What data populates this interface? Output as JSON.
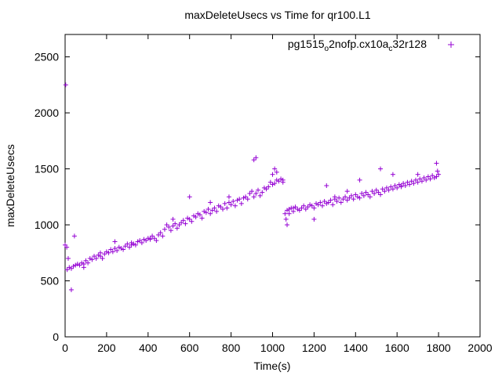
{
  "chart_data": {
    "type": "scatter",
    "title": "maxDeleteUsecs vs Time for qr100.L1",
    "xlabel": "Time(s)",
    "ylabel": "maxDeleteUsecs",
    "xlim": [
      0,
      2000
    ],
    "ylim": [
      0,
      2700
    ],
    "xticks": [
      "0",
      "200",
      "400",
      "600",
      "800",
      "1000",
      "1200",
      "1400",
      "1600",
      "1800",
      "2000"
    ],
    "yticks": [
      "0",
      "500",
      "1000",
      "1500",
      "2000",
      "2500"
    ],
    "grid": false,
    "legend": {
      "position": "top-right",
      "entries": [
        {
          "prefix": "pg1515",
          "sub1": "o",
          "middle": "2nofp.cx10a",
          "sub2": "c",
          "suffix": "32r128"
        }
      ]
    },
    "series": [
      {
        "name": "pg1515_o2nofp.cx10a_c32r128",
        "color": "#9400D3",
        "marker": "+",
        "x": [
          0,
          10,
          20,
          30,
          40,
          50,
          60,
          70,
          80,
          90,
          100,
          110,
          120,
          130,
          140,
          150,
          160,
          170,
          180,
          190,
          200,
          210,
          220,
          230,
          240,
          250,
          260,
          270,
          280,
          290,
          300,
          310,
          320,
          330,
          340,
          350,
          360,
          370,
          380,
          390,
          400,
          410,
          420,
          430,
          440,
          450,
          460,
          470,
          480,
          490,
          500,
          510,
          520,
          530,
          540,
          550,
          560,
          570,
          580,
          590,
          600,
          610,
          620,
          630,
          640,
          650,
          660,
          670,
          680,
          690,
          700,
          710,
          720,
          730,
          740,
          750,
          760,
          770,
          780,
          790,
          800,
          810,
          820,
          830,
          840,
          850,
          860,
          870,
          880,
          890,
          900,
          910,
          920,
          930,
          940,
          950,
          960,
          970,
          980,
          990,
          1000,
          1010,
          1020,
          1030,
          1040,
          1050,
          1060,
          1070,
          1080,
          1090,
          1100,
          1110,
          1120,
          1130,
          1140,
          1150,
          1160,
          1170,
          1180,
          1190,
          1200,
          1210,
          1220,
          1230,
          1240,
          1250,
          1260,
          1270,
          1280,
          1290,
          1300,
          1310,
          1320,
          1330,
          1340,
          1350,
          1360,
          1370,
          1380,
          1390,
          1400,
          1410,
          1420,
          1430,
          1440,
          1450,
          1460,
          1470,
          1480,
          1490,
          1500,
          1510,
          1520,
          1530,
          1540,
          1550,
          1560,
          1570,
          1580,
          1590,
          1600,
          1610,
          1620,
          1630,
          1640,
          1650,
          1660,
          1670,
          1680,
          1690,
          1700,
          1710,
          1720,
          1730,
          1740,
          1750,
          1760,
          1770,
          1780,
          1790,
          1800,
          3,
          8,
          15,
          30,
          45,
          90,
          170,
          240,
          320,
          410,
          520,
          600,
          700,
          790,
          910,
          920,
          1000,
          1010,
          1020,
          1050,
          1065,
          1070,
          1080,
          1100,
          1200,
          1260,
          1300,
          1360,
          1420,
          1520,
          1580,
          1620,
          1700,
          1790,
          1795
        ],
        "y": [
          820,
          600,
          620,
          610,
          630,
          640,
          650,
          640,
          660,
          650,
          680,
          660,
          700,
          690,
          720,
          700,
          730,
          720,
          700,
          740,
          760,
          750,
          780,
          760,
          790,
          770,
          800,
          790,
          780,
          810,
          830,
          800,
          840,
          830,
          820,
          850,
          860,
          840,
          870,
          860,
          880,
          870,
          900,
          880,
          860,
          910,
          930,
          900,
          960,
          1000,
          980,
          950,
          990,
          1010,
          970,
          1000,
          1020,
          1040,
          1010,
          1060,
          1050,
          1030,
          1080,
          1070,
          1100,
          1090,
          1060,
          1120,
          1110,
          1140,
          1100,
          1130,
          1150,
          1120,
          1170,
          1160,
          1140,
          1190,
          1150,
          1200,
          1180,
          1210,
          1170,
          1220,
          1230,
          1190,
          1240,
          1250,
          1230,
          1280,
          1300,
          1250,
          1280,
          1310,
          1260,
          1290,
          1330,
          1320,
          1340,
          1380,
          1360,
          1370,
          1400,
          1390,
          1410,
          1380,
          1100,
          1130,
          1140,
          1150,
          1120,
          1160,
          1140,
          1130,
          1150,
          1170,
          1140,
          1160,
          1180,
          1170,
          1150,
          1190,
          1180,
          1200,
          1170,
          1210,
          1190,
          1200,
          1220,
          1180,
          1230,
          1210,
          1240,
          1200,
          1230,
          1250,
          1220,
          1240,
          1260,
          1230,
          1270,
          1250,
          1240,
          1280,
          1260,
          1290,
          1270,
          1250,
          1300,
          1280,
          1310,
          1290,
          1270,
          1320,
          1300,
          1330,
          1310,
          1340,
          1320,
          1350,
          1330,
          1360,
          1340,
          1370,
          1350,
          1380,
          1360,
          1390,
          1370,
          1400,
          1380,
          1410,
          1390,
          1420,
          1400,
          1430,
          1410,
          1440,
          1420,
          1430,
          1450,
          2250,
          800,
          700,
          420,
          900,
          620,
          750,
          850,
          820,
          880,
          1050,
          1250,
          1200,
          1250,
          1580,
          1600,
          1450,
          1500,
          1470,
          1400,
          1050,
          1000,
          1100,
          1150,
          1050,
          1350,
          1250,
          1300,
          1400,
          1500,
          1450,
          1350,
          1450,
          1550,
          1480
        ]
      }
    ]
  }
}
